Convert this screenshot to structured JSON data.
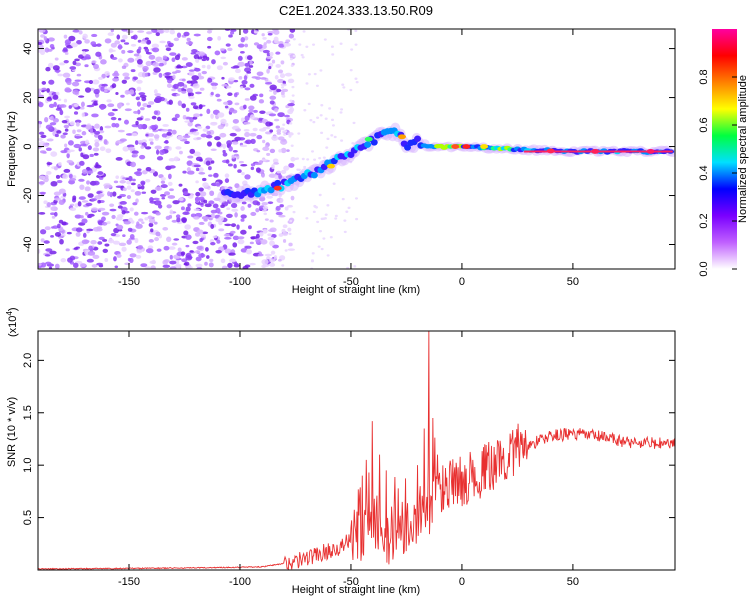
{
  "title": "C2E1.2024.333.13.50.R09",
  "chart_data": [
    {
      "type": "heatmap",
      "xlabel": "Height of straight line (km)",
      "ylabel": "Frequency (Hz)",
      "xlim": [
        -191,
        96
      ],
      "ylim": [
        -50,
        48
      ],
      "x_ticks": [
        -150,
        -100,
        -50,
        0,
        50
      ],
      "y_ticks": [
        -40,
        -20,
        0,
        20,
        40
      ],
      "colorbar": {
        "label": "Normalized spectral amplitude",
        "range": [
          0,
          1
        ],
        "ticks": [
          "0.0",
          "0.2",
          "0.4",
          "0.6",
          "0.8"
        ],
        "colors": [
          "#ffffff",
          "#c060ff",
          "#7a00ff",
          "#0000ff",
          "#00e0ff",
          "#00ff40",
          "#ffff00",
          "#ff8000",
          "#ff0000",
          "#ff00a0"
        ]
      },
      "noise_region_x": [
        -191,
        -82
      ],
      "ridge": [
        {
          "x": -106,
          "y": -20
        },
        {
          "x": -95,
          "y": -19
        },
        {
          "x": -85,
          "y": -17
        },
        {
          "x": -75,
          "y": -14
        },
        {
          "x": -65,
          "y": -10
        },
        {
          "x": -55,
          "y": -5
        },
        {
          "x": -45,
          "y": 0
        },
        {
          "x": -38,
          "y": 4
        },
        {
          "x": -30,
          "y": 6
        },
        {
          "x": -24,
          "y": 0
        },
        {
          "x": -20,
          "y": 2
        },
        {
          "x": -15,
          "y": 0
        },
        {
          "x": 0,
          "y": 0
        },
        {
          "x": 20,
          "y": -1
        },
        {
          "x": 50,
          "y": -2
        },
        {
          "x": 95,
          "y": -2
        }
      ]
    },
    {
      "type": "line",
      "xlabel": "Height of straight line (km)",
      "ylabel": "SNR (10 * v/v)",
      "multiplier": "(x10^4)",
      "multiplier_base": "(x10",
      "multiplier_exp": "4",
      "xlim": [
        -191,
        96
      ],
      "ylim": [
        0,
        2.28
      ],
      "x_ticks": [
        -150,
        -100,
        -50,
        0,
        50
      ],
      "y_ticks": [
        0.5,
        1.0,
        1.5,
        2.0
      ],
      "y_tick_labels": [
        "0.5",
        "1.0",
        "1.5",
        "2.0"
      ],
      "series": [
        {
          "color": "#e83030",
          "anchors": [
            {
              "x": -191,
              "y": 0.01
            },
            {
              "x": -120,
              "y": 0.02
            },
            {
              "x": -90,
              "y": 0.03
            },
            {
              "x": -75,
              "y": 0.08
            },
            {
              "x": -65,
              "y": 0.15
            },
            {
              "x": -55,
              "y": 0.22
            },
            {
              "x": -45,
              "y": 0.35
            },
            {
              "x": -40,
              "y": 0.42
            },
            {
              "x": -35,
              "y": 0.3
            },
            {
              "x": -25,
              "y": 0.45
            },
            {
              "x": -15,
              "y": 0.6
            },
            {
              "x": -10,
              "y": 0.75
            },
            {
              "x": 0,
              "y": 0.85
            },
            {
              "x": 10,
              "y": 0.95
            },
            {
              "x": 25,
              "y": 1.15
            },
            {
              "x": 40,
              "y": 1.28
            },
            {
              "x": 50,
              "y": 1.3
            },
            {
              "x": 60,
              "y": 1.28
            },
            {
              "x": 75,
              "y": 1.22
            },
            {
              "x": 96,
              "y": 1.2
            }
          ],
          "peaks": [
            {
              "x": -40.5,
              "y": 1.42
            },
            {
              "x": -43,
              "y": 1.05
            },
            {
              "x": -45,
              "y": 0.9
            },
            {
              "x": -37,
              "y": 1.1
            },
            {
              "x": -34,
              "y": 0.95
            },
            {
              "x": -15,
              "y": 2.28
            },
            {
              "x": -13,
              "y": 1.45
            },
            {
              "x": -17,
              "y": 1.35
            },
            {
              "x": -20,
              "y": 1.0
            },
            {
              "x": -11,
              "y": 1.1
            },
            {
              "x": -27,
              "y": 0.65
            },
            {
              "x": -5,
              "y": 1.0
            },
            {
              "x": 5,
              "y": 1.05
            },
            {
              "x": 15,
              "y": 1.1
            },
            {
              "x": 22,
              "y": 1.2
            },
            {
              "x": 27,
              "y": 1.3
            }
          ]
        }
      ]
    }
  ]
}
